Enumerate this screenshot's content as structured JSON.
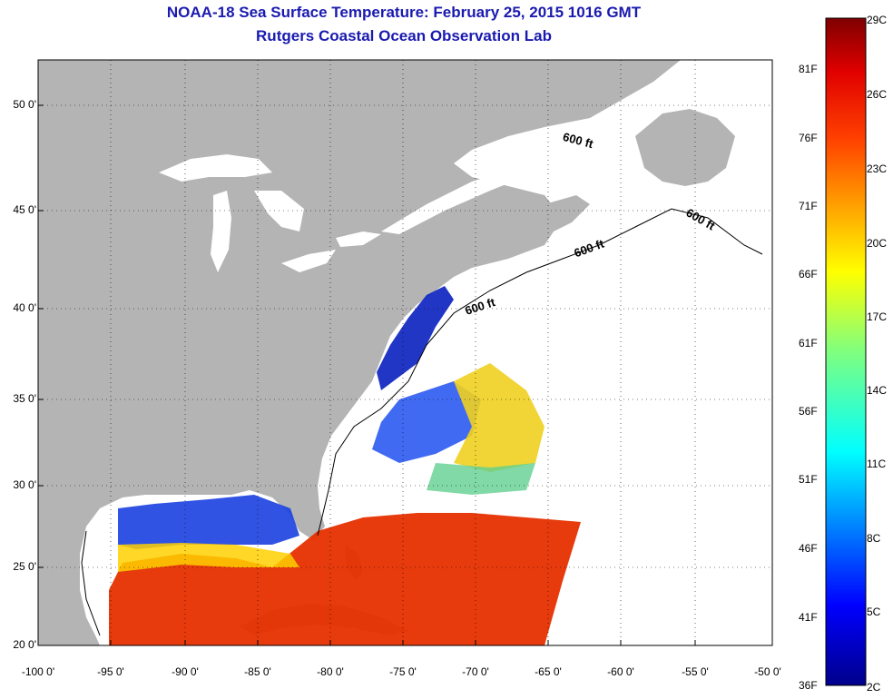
{
  "title": {
    "line1": "NOAA-18 Sea Surface Temperature:  February 25, 2015 1016 GMT",
    "line2": "Rutgers Coastal Ocean Observation Lab"
  },
  "map": {
    "lat_labels": [
      "50 0'",
      "45 0'",
      "40 0'",
      "35 0'",
      "30 0'",
      "25 0'",
      "20 0'"
    ],
    "lon_labels": [
      "-100 0'",
      "-95 0'",
      "-90 0'",
      "-85 0'",
      "-80 0'",
      "-75 0'",
      "-70 0'",
      "-65 0'",
      "-60 0'",
      "-55 0'",
      "-50 0'"
    ],
    "isobath_labels": [
      "600 ft",
      "600 ft",
      "600 ft",
      "600 ft"
    ],
    "colors": {
      "land": "#b4b4b4",
      "no_data": "#ffffff",
      "grid": "#000000"
    }
  },
  "colorbar": {
    "fahrenheit": [
      "81F",
      "76F",
      "71F",
      "66F",
      "61F",
      "56F",
      "51F",
      "46F",
      "41F",
      "36F"
    ],
    "celsius": [
      "29C",
      "26C",
      "23C",
      "20C",
      "17C",
      "14C",
      "11C",
      "8C",
      "5C",
      "2C"
    ]
  }
}
